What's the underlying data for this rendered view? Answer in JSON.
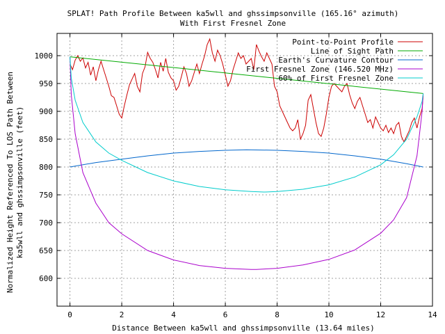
{
  "chart_data": {
    "type": "line",
    "title": "SPLAT! Path Profile Between ka5wll and ghssimpsonville (165.16° azimuth)",
    "subtitle": "With First Fresnel Zone",
    "xlabel": "Distance Between ka5wll and ghssimpsonville (13.64 miles)",
    "ylabel_line1": "Normalized Height Referenced To LOS Path Between",
    "ylabel_line2": "ka5wll and ghssimpsonville (feet)",
    "xlim": [
      -0.5,
      14
    ],
    "ylim": [
      550,
      1040
    ],
    "xticks": [
      0,
      2,
      4,
      6,
      8,
      10,
      12,
      14
    ],
    "yticks": [
      600,
      650,
      700,
      750,
      800,
      850,
      900,
      950,
      1000
    ],
    "grid": true,
    "legend_position": "top-right",
    "series": [
      {
        "name": "Point-to-Point Profile",
        "color": "#cc0000",
        "x": [
          0.0,
          0.1,
          0.2,
          0.3,
          0.4,
          0.5,
          0.6,
          0.7,
          0.8,
          0.9,
          1.0,
          1.1,
          1.2,
          1.3,
          1.4,
          1.5,
          1.6,
          1.7,
          1.8,
          1.9,
          2.0,
          2.1,
          2.2,
          2.3,
          2.4,
          2.5,
          2.6,
          2.7,
          2.8,
          2.9,
          3.0,
          3.1,
          3.2,
          3.3,
          3.4,
          3.5,
          3.6,
          3.7,
          3.8,
          3.9,
          4.0,
          4.1,
          4.2,
          4.3,
          4.4,
          4.5,
          4.6,
          4.7,
          4.8,
          4.9,
          5.0,
          5.1,
          5.2,
          5.3,
          5.4,
          5.5,
          5.6,
          5.7,
          5.8,
          5.9,
          6.0,
          6.1,
          6.2,
          6.3,
          6.4,
          6.5,
          6.6,
          6.7,
          6.8,
          6.9,
          7.0,
          7.1,
          7.2,
          7.3,
          7.4,
          7.5,
          7.6,
          7.7,
          7.8,
          7.9,
          8.0,
          8.1,
          8.2,
          8.3,
          8.4,
          8.5,
          8.6,
          8.7,
          8.8,
          8.9,
          9.0,
          9.1,
          9.2,
          9.3,
          9.4,
          9.5,
          9.6,
          9.7,
          9.8,
          9.9,
          10.0,
          10.1,
          10.2,
          10.3,
          10.4,
          10.5,
          10.6,
          10.7,
          10.8,
          10.9,
          11.0,
          11.1,
          11.2,
          11.3,
          11.4,
          11.5,
          11.6,
          11.7,
          11.8,
          11.9,
          12.0,
          12.1,
          12.2,
          12.3,
          12.4,
          12.5,
          12.6,
          12.7,
          12.8,
          12.9,
          13.0,
          13.1,
          13.2,
          13.3,
          13.4,
          13.5,
          13.6,
          13.64
        ],
        "values": [
          985,
          975,
          992,
          1000,
          990,
          996,
          978,
          988,
          965,
          980,
          955,
          975,
          990,
          975,
          960,
          945,
          928,
          925,
          910,
          895,
          888,
          910,
          930,
          948,
          958,
          968,
          945,
          935,
          968,
          980,
          1006,
          995,
          988,
          975,
          960,
          988,
          972,
          995,
          970,
          960,
          955,
          938,
          945,
          962,
          980,
          968,
          945,
          955,
          970,
          985,
          968,
          985,
          1000,
          1020,
          1030,
          1005,
          990,
          1010,
          1000,
          985,
          965,
          945,
          955,
          975,
          990,
          1005,
          995,
          1000,
          985,
          990,
          995,
          975,
          1020,
          1008,
          998,
          990,
          1005,
          995,
          985,
          945,
          935,
          910,
          900,
          890,
          880,
          870,
          865,
          870,
          885,
          850,
          860,
          875,
          920,
          930,
          905,
          880,
          860,
          855,
          870,
          895,
          925,
          945,
          950,
          945,
          940,
          935,
          945,
          950,
          930,
          915,
          905,
          918,
          925,
          910,
          895,
          880,
          885,
          870,
          890,
          880,
          870,
          865,
          875,
          862,
          870,
          860,
          875,
          880,
          855,
          845,
          855,
          865,
          880,
          888,
          870,
          890,
          905,
          928
        ]
      },
      {
        "name": "Line of Sight Path",
        "color": "#00aa00",
        "x": [
          0.0,
          13.64
        ],
        "values": [
          998,
          932
        ]
      },
      {
        "name": "Earth's Curvature Contour",
        "color": "#0066cc",
        "x": [
          0.0,
          1.0,
          2.0,
          3.0,
          4.0,
          5.0,
          6.0,
          6.82,
          8.0,
          9.0,
          10.0,
          11.0,
          12.0,
          13.0,
          13.64
        ],
        "values": [
          800,
          808,
          814,
          820,
          825,
          828,
          830,
          831,
          830,
          828,
          825,
          820,
          814,
          806,
          800
        ]
      },
      {
        "name": "First Fresnel Zone (146.520 MHz)",
        "color": "#aa00cc",
        "x": [
          0.0,
          0.05,
          0.2,
          0.5,
          1.0,
          1.5,
          2.0,
          3.0,
          4.0,
          5.0,
          6.0,
          7.0,
          7.2,
          8.0,
          9.0,
          10.0,
          11.0,
          12.0,
          12.5,
          13.0,
          13.4,
          13.6,
          13.64
        ],
        "values": [
          998,
          930,
          860,
          790,
          735,
          700,
          680,
          650,
          633,
          623,
          618,
          616,
          616,
          618,
          624,
          634,
          651,
          681,
          705,
          745,
          820,
          900,
          932
        ]
      },
      {
        "name": "60% of First Fresnel Zone",
        "color": "#00cccc",
        "x": [
          0.0,
          0.05,
          0.2,
          0.5,
          1.0,
          1.5,
          2.0,
          3.0,
          4.0,
          5.0,
          6.0,
          7.0,
          7.5,
          8.0,
          9.0,
          10.0,
          11.0,
          12.0,
          12.5,
          13.0,
          13.4,
          13.6,
          13.64
        ],
        "values": [
          998,
          960,
          920,
          880,
          845,
          825,
          812,
          790,
          775,
          765,
          759,
          756,
          755,
          756,
          760,
          768,
          782,
          804,
          822,
          850,
          890,
          918,
          932
        ]
      }
    ]
  }
}
